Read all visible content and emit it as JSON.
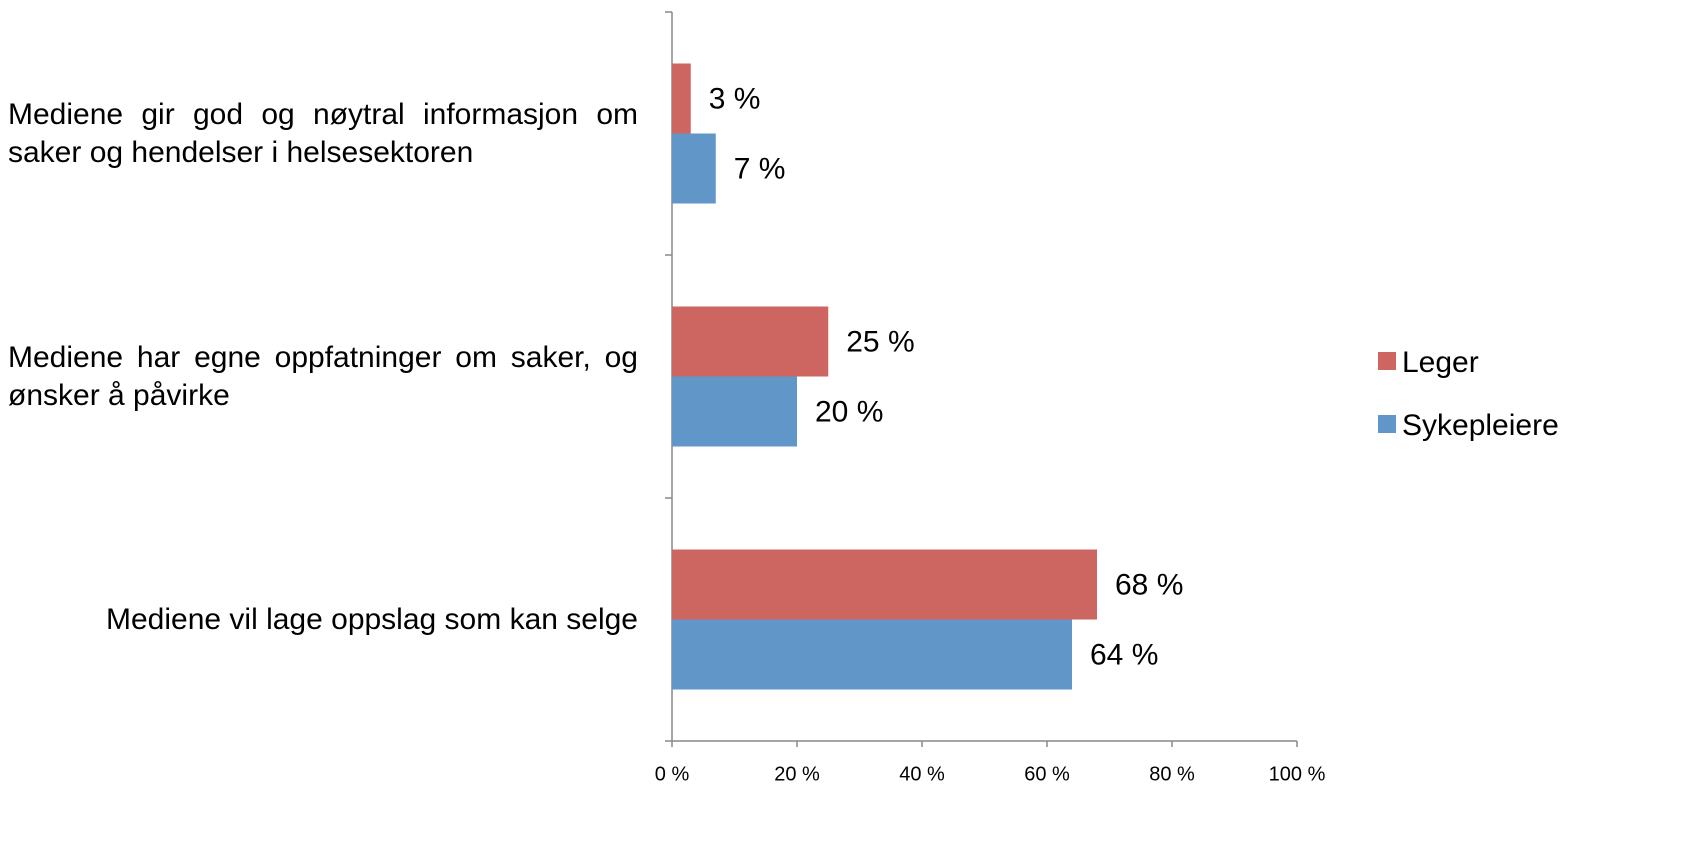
{
  "chart_data": {
    "type": "bar",
    "orientation": "horizontal",
    "categories": [
      "Mediene gir god og nøytral informasjon om saker og hendelser i helsesektoren",
      "Mediene har egne oppfatninger om saker, og ønsker å påvirke",
      "Mediene vil lage oppslag som kan selge"
    ],
    "series": [
      {
        "name": "Leger",
        "color": "#cd6660",
        "values": [
          3,
          25,
          68
        ],
        "value_labels": [
          "3 %",
          "25 %",
          "68 %"
        ]
      },
      {
        "name": "Sykepleiere",
        "color": "#6196c8",
        "values": [
          7,
          20,
          64
        ],
        "value_labels": [
          "7 %",
          "20 %",
          "64 %"
        ]
      }
    ],
    "xlim": [
      0,
      100
    ],
    "xticks": [
      {
        "value": 0,
        "label": "0 %"
      },
      {
        "value": 20,
        "label": "20 %"
      },
      {
        "value": 40,
        "label": "40 %"
      },
      {
        "value": 60,
        "label": "60 %"
      },
      {
        "value": 80,
        "label": "80 %"
      },
      {
        "value": 100,
        "label": "100 %"
      }
    ],
    "legend": "right",
    "grid": false
  }
}
